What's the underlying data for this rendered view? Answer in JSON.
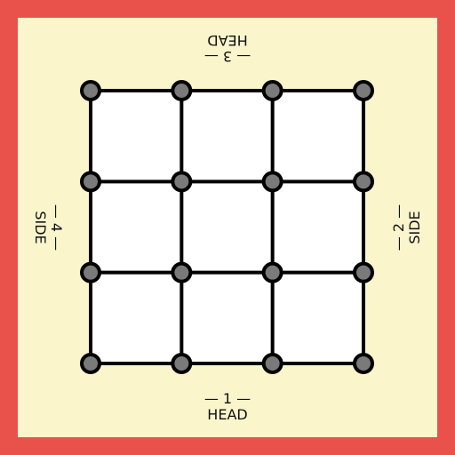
{
  "board": {
    "rows": 4,
    "cols": 4,
    "colors": {
      "frame": "#e8524a",
      "table": "#fbf5cc",
      "square": "#ffffff",
      "line": "#000000",
      "node": "#7a7a7a"
    }
  },
  "sides": {
    "bottom": {
      "number": "— 1 —",
      "name": "HEAD"
    },
    "right": {
      "number": "— 2 —",
      "name": "SIDE"
    },
    "top": {
      "number": "— 3 —",
      "name": "HEAD"
    },
    "left": {
      "number": "— 4 —",
      "name": "SIDE"
    }
  }
}
